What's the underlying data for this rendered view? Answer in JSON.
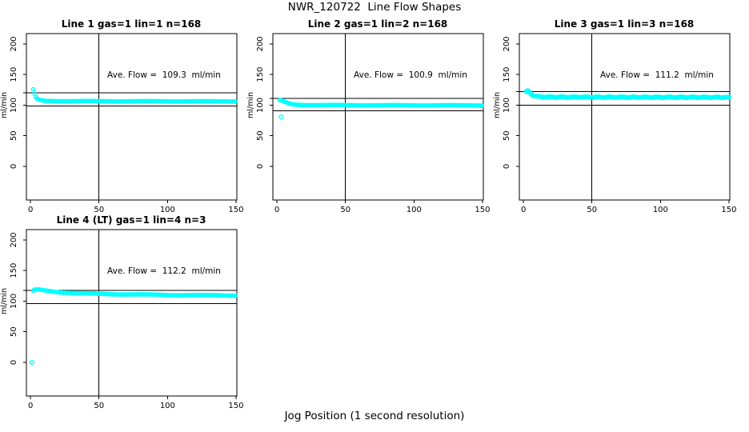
{
  "page_title": "NWR_120722  Line Flow Shapes",
  "xlabel": "Jog Position (1 second resolution)",
  "colors": {
    "points": "#00FFFF",
    "axis": "#000000",
    "background": "#FFFFFF"
  },
  "axes": {
    "ylabel": "ml/min",
    "x_ticks": [
      0,
      50,
      100,
      150
    ],
    "y_ticks": [
      0,
      50,
      100,
      150,
      200
    ],
    "xlim": [
      -3,
      150.6
    ],
    "ylim": [
      -55,
      217
    ],
    "grid": false
  },
  "chart_data": [
    {
      "type": "scatter",
      "title": "Line 1 gas=1 lin=1 n=168",
      "line": 1,
      "gas": 1,
      "lin": 1,
      "n": 168,
      "annotation": "Ave. Flow =  109.3  ml/min",
      "ave_flow_ml_min": 109.3,
      "hlines": [
        120.2,
        98.4
      ],
      "vline": 50,
      "profile": [
        [
          2,
          126
        ],
        [
          3,
          117.5
        ],
        [
          4,
          112
        ],
        [
          5,
          110
        ],
        [
          7,
          108.3
        ],
        [
          10,
          107.2
        ],
        [
          15,
          106.8
        ],
        [
          40,
          106.5
        ],
        [
          150,
          106.2
        ]
      ],
      "outliers": [],
      "x_start": 2,
      "x_end": 150.5,
      "x_step": 0.9,
      "jitter": 0.55,
      "marker_r": 2.1
    },
    {
      "type": "scatter",
      "title": "Line 2 gas=1 lin=2 n=168",
      "line": 2,
      "gas": 1,
      "lin": 2,
      "n": 168,
      "annotation": "Ave. Flow =  100.9  ml/min",
      "ave_flow_ml_min": 100.9,
      "hlines": [
        111.0,
        90.8
      ],
      "vline": 50,
      "profile": [
        [
          2,
          108
        ],
        [
          4,
          107
        ],
        [
          6,
          105
        ],
        [
          9,
          102.5
        ],
        [
          13,
          101
        ],
        [
          20,
          100.2
        ],
        [
          60,
          99.8
        ],
        [
          150,
          99.6
        ]
      ],
      "outliers": [
        [
          3,
          81
        ]
      ],
      "x_start": 2,
      "x_end": 150.5,
      "x_step": 0.9,
      "jitter": 0.6,
      "marker_r": 2.1
    },
    {
      "type": "scatter",
      "title": "Line 3 gas=1 lin=3 n=168",
      "line": 3,
      "gas": 1,
      "lin": 3,
      "n": 168,
      "annotation": "Ave. Flow =  111.2  ml/min",
      "ave_flow_ml_min": 111.2,
      "hlines": [
        122.3,
        100.1
      ],
      "vline": 50,
      "profile": [
        [
          2,
          122
        ],
        [
          3,
          123.5
        ],
        [
          4,
          122.5
        ],
        [
          5,
          120
        ],
        [
          6,
          117.5
        ],
        [
          8,
          115
        ],
        [
          11,
          113.8
        ],
        [
          20,
          113.3
        ],
        [
          150,
          112.8
        ]
      ],
      "outliers": [],
      "x_start": 2,
      "x_end": 150.5,
      "x_step": 0.8,
      "jitter": 1.1,
      "marker_r": 2.3
    },
    {
      "type": "scatter",
      "title": "Line 4 (LT) gas=1 lin=4 n=3",
      "line": 4,
      "gas": 1,
      "lin": 4,
      "n": 3,
      "annotation": "Ave. Flow =  112.2  ml/min",
      "ave_flow_ml_min": 112.2,
      "hlines": [
        117.5,
        96.0
      ],
      "vline": 50,
      "profile": [
        [
          2,
          117
        ],
        [
          3,
          118.5
        ],
        [
          6,
          119
        ],
        [
          9,
          118
        ],
        [
          14,
          116.5
        ],
        [
          22,
          114.5
        ],
        [
          35,
          113
        ],
        [
          60,
          111.5
        ],
        [
          100,
          110.2
        ],
        [
          150,
          109.3
        ]
      ],
      "outliers": [
        [
          1,
          0
        ]
      ],
      "x_start": 2,
      "x_end": 150.5,
      "x_step": 0.9,
      "jitter": 0.8,
      "marker_r": 2.1
    }
  ]
}
